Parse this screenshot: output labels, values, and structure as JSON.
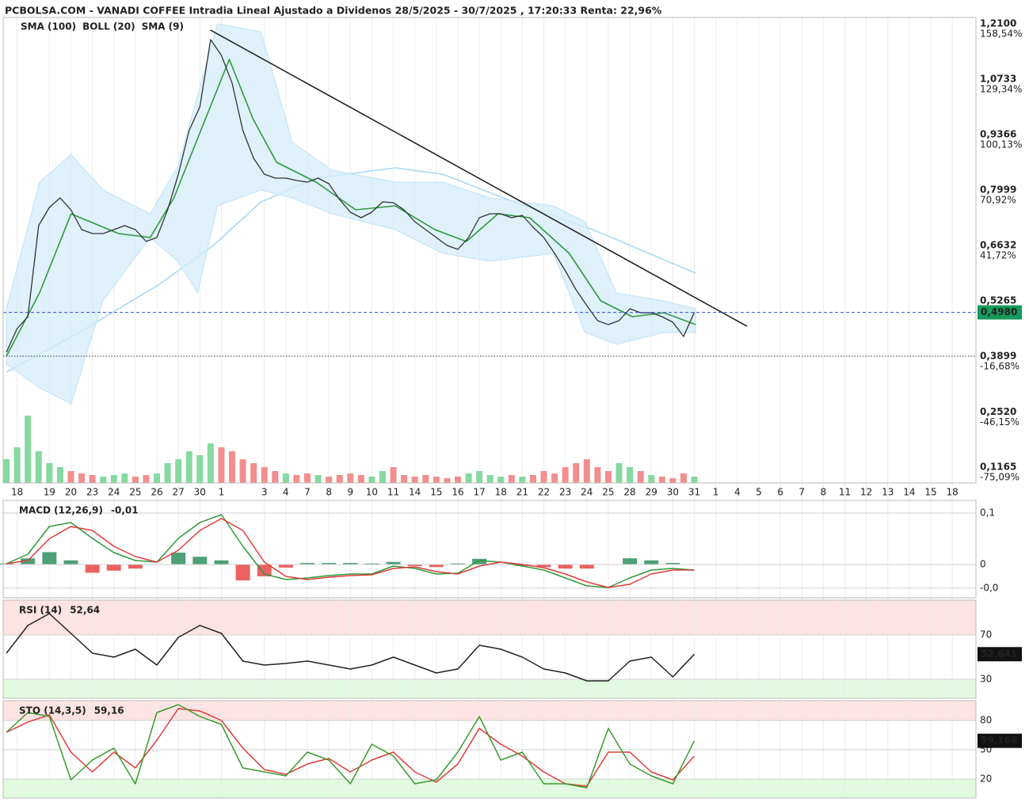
{
  "chart_data": [
    {
      "type": "line",
      "title": "PCBOLSA.COM - VANADI COFFEE Intradia Lineal Ajustado a Dividenos 28/5/2025 - 30/7/2025 , 17:20:33 Renta: 22,96%",
      "color": "#333333",
      "x": [
        0,
        0.5,
        1,
        1.5,
        2,
        2.5,
        3,
        3.5,
        4,
        4.5,
        5,
        5.5,
        6,
        6.5,
        7,
        7.5,
        8,
        8.5,
        9,
        9.5,
        10,
        10.5,
        11,
        11.5,
        12,
        12.5,
        13,
        13.5,
        14,
        14.5,
        15,
        15.5,
        16,
        16.5,
        17,
        17.5,
        18,
        18.5,
        19,
        19.5,
        20,
        20.5,
        21,
        21.5,
        22,
        22.5,
        23,
        23.5,
        24,
        24.5,
        25,
        25.5,
        26,
        26.5,
        27,
        27.5,
        28,
        28.5,
        29,
        29.5,
        30,
        30.5,
        31,
        31.5,
        32
      ],
      "values": [
        0.3995,
        0.4581,
        0.4874,
        0.712,
        0.7569,
        0.7803,
        0.7511,
        0.7022,
        0.6925,
        0.6925,
        0.7022,
        0.712,
        0.7022,
        0.6729,
        0.6827,
        0.7511,
        0.8389,
        0.9464,
        1.0049,
        1.1709,
        1.1319,
        1.0635,
        0.9464,
        0.878,
        0.8389,
        0.8292,
        0.8292,
        0.8233,
        0.8194,
        0.8292,
        0.8155,
        0.7764,
        0.7452,
        0.7315,
        0.7452,
        0.7706,
        0.7686,
        0.7511,
        0.7218,
        0.7022,
        0.6827,
        0.6632,
        0.6534,
        0.6827,
        0.7315,
        0.7413,
        0.7413,
        0.7315,
        0.7374,
        0.7081,
        0.6827,
        0.6436,
        0.6007,
        0.5538,
        0.5147,
        0.4776,
        0.4679,
        0.4776,
        0.5069,
        0.4972,
        0.4972,
        0.4874,
        0.4737,
        0.4386,
        0.498
      ],
      "last_label": "0,4980",
      "last_color": "#169a5b",
      "volume": [
        30,
        45,
        85,
        40,
        25,
        20,
        15,
        12,
        10,
        8,
        10,
        12,
        8,
        10,
        12,
        25,
        30,
        40,
        35,
        50,
        45,
        40,
        30,
        25,
        20,
        15,
        12,
        10,
        12,
        10,
        8,
        10,
        12,
        10,
        8,
        15,
        20,
        10,
        8,
        10,
        8,
        6,
        8,
        12,
        15,
        10,
        8,
        10,
        8,
        10,
        15,
        12,
        20,
        25,
        30,
        20,
        15,
        25,
        20,
        15,
        10,
        8,
        6,
        12,
        8
      ],
      "volume_ylim": [
        0,
        100
      ],
      "volume_colors": {
        "up": "#86d9a0",
        "down": "#f28e8e"
      },
      "series": [
        {
          "name": "SMA (100)",
          "color": "#a9d9f3",
          "x": [
            0,
            3.38,
            7.06,
            9.63,
            11.84,
            14.41,
            18.09,
            20.29,
            23.6,
            27.28,
            32.06
          ],
          "values": [
            0.3507,
            0.4484,
            0.5655,
            0.6632,
            0.7706,
            0.8292,
            0.8546,
            0.8389,
            0.7706,
            0.7022,
            0.5948
          ]
        },
        {
          "name": "BOLL (20)",
          "color": "#d4ecfa",
          "x": [
            0,
            1.54,
            3.01,
            4.49,
            6.69,
            7.97,
            8.9,
            9.82,
            11.84,
            13.31,
            15.15,
            18.09,
            20.29,
            22.5,
            25.44,
            26.91,
            28.38,
            30.59,
            32.06
          ],
          "upper": [
            0.5069,
            0.8194,
            0.8878,
            0.7999,
            0.7413,
            0.8585,
            1.0342,
            1.21,
            1.1905,
            0.9171,
            0.8487,
            0.8194,
            0.8194,
            0.7803,
            0.7608,
            0.7218,
            0.546,
            0.5265,
            0.5069
          ],
          "lower": [
            0.3702,
            0.3116,
            0.2726,
            0.5265,
            0.6827,
            0.6241,
            0.546,
            0.7608,
            0.7999,
            0.7803,
            0.7413,
            0.7022,
            0.6436,
            0.6241,
            0.6436,
            0.4484,
            0.4191,
            0.4484,
            0.4484
          ]
        },
        {
          "name": "SMA (9)",
          "color": "#2e9a3a",
          "x": [
            0,
            1.54,
            3.01,
            5.22,
            6.69,
            7.79,
            9.26,
            10.37,
            11.47,
            12.57,
            14.41,
            16.25,
            18.09,
            19.93,
            21.4,
            22.87,
            24.34,
            26.18,
            27.65,
            29.12,
            30.59,
            32.06
          ],
          "values": [
            0.3898,
            0.546,
            0.741,
            0.6925,
            0.6827,
            0.7803,
            0.9757,
            1.1221,
            0.9757,
            0.8682,
            0.8194,
            0.7511,
            0.7608,
            0.7022,
            0.6729,
            0.7413,
            0.7315,
            0.6436,
            0.5265,
            0.4874,
            0.4972,
            0.4679
          ]
        }
      ],
      "trendline": {
        "x": [
          9.49,
          34.45
        ],
        "values": [
          1.1944,
          0.4639
        ],
        "color": "#222222"
      },
      "reference_line": 0.39,
      "xlim": [
        -0.15,
        45.1
      ],
      "xticks": [
        {
          "value": 0.5,
          "label": "18"
        },
        {
          "value": 2,
          "label": "19"
        },
        {
          "value": 3,
          "label": "20"
        },
        {
          "value": 4,
          "label": "23"
        },
        {
          "value": 5,
          "label": "24"
        },
        {
          "value": 6,
          "label": "25"
        },
        {
          "value": 7,
          "label": "26"
        },
        {
          "value": 8,
          "label": "27"
        },
        {
          "value": 9,
          "label": "30"
        },
        {
          "value": 10,
          "label": "1"
        },
        {
          "value": 12,
          "label": "3"
        },
        {
          "value": 13,
          "label": "4"
        },
        {
          "value": 14,
          "label": "7"
        },
        {
          "value": 15,
          "label": "8"
        },
        {
          "value": 16,
          "label": "9"
        },
        {
          "value": 17,
          "label": "10"
        },
        {
          "value": 18,
          "label": "11"
        },
        {
          "value": 19,
          "label": "14"
        },
        {
          "value": 20,
          "label": "15"
        },
        {
          "value": 21,
          "label": "16"
        },
        {
          "value": 22,
          "label": "17"
        },
        {
          "value": 23,
          "label": "18"
        },
        {
          "value": 24,
          "label": "21"
        },
        {
          "value": 25,
          "label": "22"
        },
        {
          "value": 26,
          "label": "23"
        },
        {
          "value": 27,
          "label": "24"
        },
        {
          "value": 28,
          "label": "25"
        },
        {
          "value": 29,
          "label": "28"
        },
        {
          "value": 30,
          "label": "29"
        },
        {
          "value": 31,
          "label": "30"
        },
        {
          "value": 32,
          "label": "31"
        },
        {
          "value": 33,
          "label": "1"
        },
        {
          "value": 34,
          "label": "4"
        },
        {
          "value": 35,
          "label": "5"
        },
        {
          "value": 36,
          "label": "6"
        },
        {
          "value": 37,
          "label": "7"
        },
        {
          "value": 38,
          "label": "8"
        },
        {
          "value": 39,
          "label": "11"
        },
        {
          "value": 40,
          "label": "12"
        },
        {
          "value": 41,
          "label": "13"
        },
        {
          "value": 42,
          "label": "14"
        },
        {
          "value": 43,
          "label": "15"
        },
        {
          "value": 44,
          "label": "18"
        }
      ],
      "grid": true,
      "ylim": [
        0.0773,
        1.2256
      ],
      "yticks": [
        {
          "value": 1.21,
          "label": "1,2100"
        },
        {
          "value": 1.0733,
          "label": "1,0733"
        },
        {
          "value": 0.9366,
          "label": "0,9366"
        },
        {
          "value": 0.7999,
          "label": "0,7999"
        },
        {
          "value": 0.6632,
          "label": "0,6632"
        },
        {
          "value": 0.5265,
          "label": "0,5265"
        },
        {
          "value": 0.3899,
          "label": "0,3899"
        },
        {
          "value": 0.252,
          "label": "0,2520"
        },
        {
          "value": 0.1165,
          "label": "0,1165"
        }
      ],
      "y2lim": [
        -83.48,
        161.91
      ],
      "y2ticks": [
        {
          "value": 158.54,
          "label": "158,54%"
        },
        {
          "value": 129.34,
          "label": "129,34%"
        },
        {
          "value": 100.13,
          "label": "100,13%"
        },
        {
          "value": 70.92,
          "label": "70,92%"
        },
        {
          "value": 41.72,
          "label": "41,72%"
        },
        {
          "value": -16.68,
          "label": "-16,68%"
        },
        {
          "value": -46.15,
          "label": "-46,15%"
        },
        {
          "value": -75.09,
          "label": "-75,09%"
        }
      ],
      "y2tick_colors": [
        "#1f9a5a",
        "#1f9a5a",
        "#1f9a5a",
        "#1f9a5a",
        "#1f9a5a",
        "#e03030",
        "#e03030",
        "#e03030"
      ]
    },
    {
      "type": "line",
      "title": "MACD (12,26,9)",
      "readout": "-0,01",
      "x": [
        0,
        1,
        2,
        3,
        4,
        5,
        6,
        7,
        8,
        9,
        10,
        11,
        12,
        13,
        14,
        15,
        16,
        17,
        18,
        19,
        20,
        21,
        22,
        23,
        24,
        25,
        26,
        27,
        28,
        29,
        30,
        31,
        32
      ],
      "series": [
        {
          "color": "#2e9a3a",
          "values": [
            0.0015,
            0.02,
            0.0738,
            0.0815,
            0.0508,
            0.0231,
            0.0077,
            0.0046,
            0.0508,
            0.0815,
            0.0969,
            0.0354,
            -0.0185,
            -0.0292,
            -0.0262,
            -0.0215,
            -0.0185,
            -0.0185,
            -0.0031,
            -0.0077,
            -0.0185,
            -0.0169,
            0.0077,
            0.0046,
            -0.0031,
            -0.0108,
            -0.0262,
            -0.0415,
            -0.0446,
            -0.0262,
            -0.0108,
            -0.0077,
            -0.0108
          ]
        },
        {
          "color": "#e03a3a",
          "values": [
            0.0015,
            0.0077,
            0.05,
            0.0738,
            0.0662,
            0.0354,
            0.0154,
            0.0046,
            0.0277,
            0.0662,
            0.0892,
            0.0662,
            0.0046,
            -0.0231,
            -0.0292,
            -0.0246,
            -0.0215,
            -0.02,
            -0.0077,
            -0.0046,
            -0.0138,
            -0.0185,
            -0.0031,
            0.0046,
            0,
            -0.0062,
            -0.0185,
            -0.0338,
            -0.0446,
            -0.0385,
            -0.0185,
            -0.0108,
            -0.0108
          ]
        }
      ],
      "histogram": [
        0.002,
        0.012,
        0.024,
        0.008,
        -0.016,
        -0.012,
        -0.008,
        0,
        0.023,
        0.015,
        0.008,
        -0.031,
        -0.023,
        -0.006,
        0.003,
        0.003,
        0.003,
        0.002,
        0.005,
        -0.003,
        -0.005,
        0.002,
        0.011,
        0,
        -0.003,
        -0.005,
        -0.008,
        -0.008,
        0,
        0.012,
        0.008,
        0.003,
        0
      ],
      "histogram_colors": {
        "up": "#2f8f5f",
        "down": "#e84545"
      },
      "ylim": [
        -0.0646,
        0.1246
      ],
      "yticks": [
        {
          "value": 0.1,
          "label": "0,1"
        },
        0,
        {
          "value": -0.046,
          "label": "-0,0"
        }
      ],
      "ytick_colors": [
        "#e03030",
        "#222222",
        "#1f9a3a"
      ]
    },
    {
      "type": "line",
      "title": "RSI (14)",
      "readout": "52,64",
      "last_label": "52,641",
      "last_color": "#111111",
      "x": [
        0,
        1,
        2,
        3,
        4,
        5,
        6,
        7,
        8,
        9,
        10,
        11,
        12,
        13,
        14,
        15,
        16,
        17,
        18,
        19,
        20,
        21,
        22,
        23,
        24,
        25,
        26,
        27,
        28,
        29,
        30,
        31,
        32
      ],
      "series": [
        {
          "color": "#222222",
          "values": [
            53.57,
            78.57,
            89.29,
            71.43,
            53.57,
            50,
            57.14,
            42.86,
            67.86,
            78.57,
            71.43,
            46.43,
            42.86,
            44.29,
            46.43,
            42.86,
            39.29,
            42.86,
            50,
            42.86,
            35.71,
            39.29,
            60.71,
            57.14,
            50,
            39.29,
            35.71,
            28.57,
            28.57,
            46.43,
            50,
            32.14,
            52.641
          ]
        }
      ],
      "zones": [
        {
          "from": 70,
          "to": 101.4,
          "color": "#fde3e3"
        },
        {
          "from": 12.86,
          "to": 30,
          "color": "#e2fbe0"
        }
      ],
      "ylim": [
        12.86,
        101.4
      ],
      "yticks": [
        70,
        30
      ],
      "ytick_colors": [
        "#e03030",
        "#1f9a3a"
      ]
    },
    {
      "type": "line",
      "title": "STO (14,3,5)",
      "readout": "59,16",
      "last_label": "59,166",
      "last_color": "#111111",
      "x": [
        0,
        1,
        2,
        3,
        4,
        5,
        6,
        7,
        8,
        9,
        10,
        11,
        12,
        13,
        14,
        15,
        16,
        17,
        18,
        19,
        20,
        21,
        22,
        23,
        24,
        25,
        26,
        27,
        28,
        29,
        30,
        31,
        32
      ],
      "series": [
        {
          "color": "#e03a3a",
          "values": [
            67.83,
            78.35,
            85.68,
            47.56,
            27.28,
            47.56,
            31.34,
            59.72,
            92.17,
            89.73,
            80,
            51.61,
            29.72,
            24.86,
            35.39,
            41.08,
            27.28,
            39.45,
            47.56,
            27.28,
            16.73,
            35.39,
            71.89,
            55.67,
            43.5,
            27.28,
            15.12,
            12.69,
            47.56,
            47.56,
            27.28,
            19.17,
            43.5
          ]
        },
        {
          "color": "#3a9a2e",
          "values": [
            67.83,
            88.11,
            84.05,
            19.17,
            39.45,
            51.61,
            15.12,
            88.11,
            96.22,
            84.05,
            75.94,
            31.34,
            27.28,
            23.23,
            47.56,
            39.45,
            15.12,
            55.67,
            43.5,
            15.12,
            19.17,
            47.56,
            84.05,
            39.45,
            47.56,
            15.12,
            15.12,
            11.06,
            71.89,
            35.39,
            23.23,
            15.12,
            59.166
          ]
        }
      ],
      "zones": [
        {
          "from": 80,
          "to": 100.3,
          "color": "#fde3e3"
        },
        {
          "from": 0.5,
          "to": 20,
          "color": "#e2fbe0"
        }
      ],
      "ylim": [
        0.5,
        100.3
      ],
      "yticks": [
        80,
        50,
        20
      ],
      "ytick_colors": [
        "#e03030",
        "#222222",
        "#1f9a3a"
      ]
    }
  ]
}
